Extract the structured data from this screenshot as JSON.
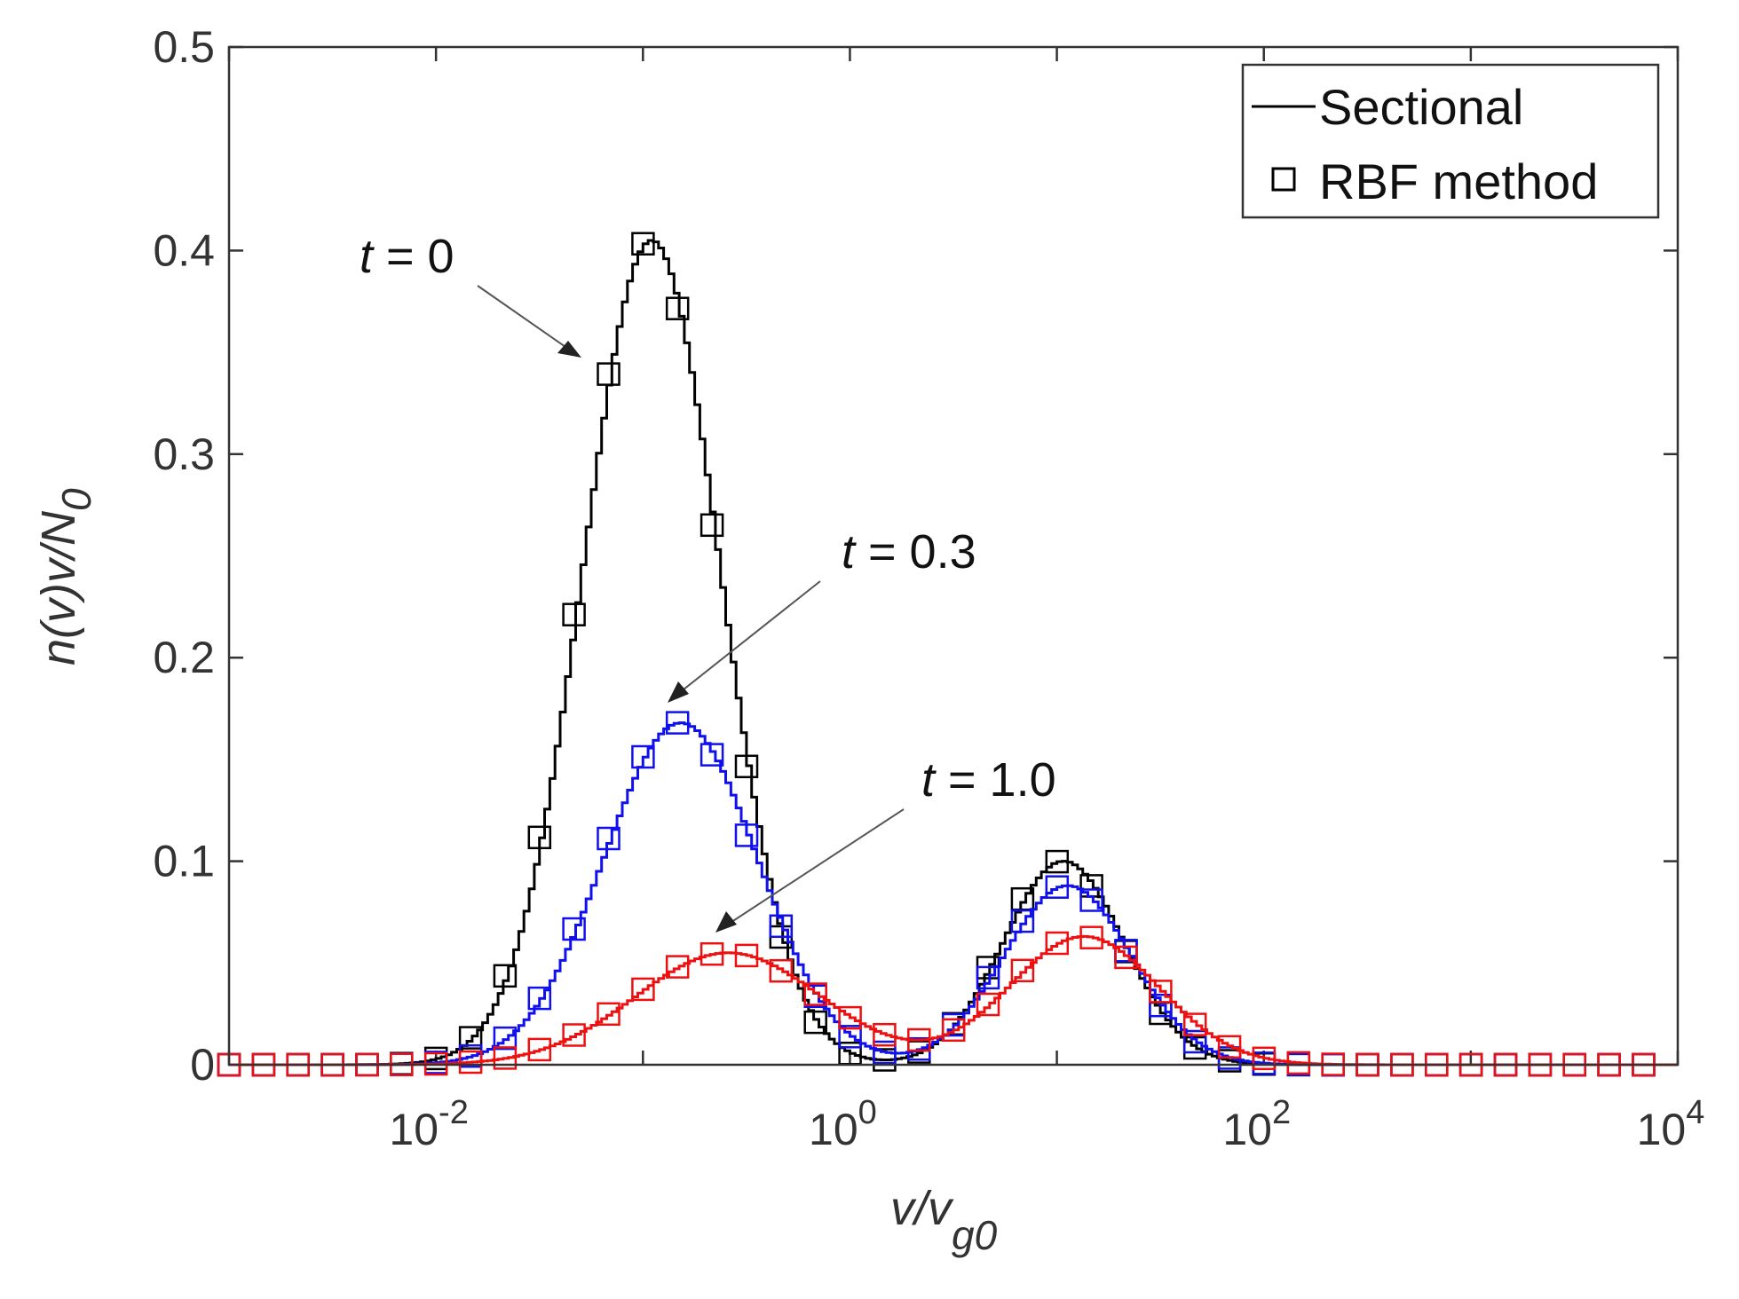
{
  "chart_data": {
    "type": "line",
    "xscale": "log",
    "xlim": [
      0.001,
      10000
    ],
    "ylim": [
      0,
      0.5
    ],
    "xticks": [
      0.01,
      1,
      100,
      10000
    ],
    "xtick_labels": [
      {
        "base": "10",
        "exp": "-2"
      },
      {
        "base": "10",
        "exp": "0"
      },
      {
        "base": "10",
        "exp": "2"
      },
      {
        "base": "10",
        "exp": "4"
      }
    ],
    "yticks": [
      0,
      0.1,
      0.2,
      0.3,
      0.4,
      0.5
    ],
    "ytick_labels": [
      "0",
      "0.1",
      "0.2",
      "0.3",
      "0.4",
      "0.5"
    ],
    "xlabel": {
      "main": "v/v",
      "sub": "g0"
    },
    "ylabel": {
      "main": "n(v)v/N",
      "sub": "0"
    },
    "legend": {
      "position": "top-right",
      "entries": [
        {
          "label": "Sectional",
          "marker": "line"
        },
        {
          "label": "RBF method",
          "marker": "square"
        }
      ]
    },
    "annotations": [
      {
        "t_label": "t",
        "value_label": " = 0",
        "series": "t=0"
      },
      {
        "t_label": "t",
        "value_label": " = 0.3",
        "series": "t=0.3"
      },
      {
        "t_label": "t",
        "value_label": " = 1.0",
        "series": "t=1.0"
      }
    ],
    "series": [
      {
        "name": "t=0",
        "color": "#000000",
        "modes": [
          {
            "amp": 0.405,
            "center_log10": -0.97,
            "width_log10": 0.33
          },
          {
            "amp": 0.1,
            "center_log10": 1.02,
            "width_log10": 0.29
          }
        ]
      },
      {
        "name": "t=0.3",
        "color": "#1010ee",
        "modes": [
          {
            "amp": 0.168,
            "center_log10": -0.83,
            "width_log10": 0.37
          },
          {
            "amp": 0.088,
            "center_log10": 1.04,
            "width_log10": 0.31
          }
        ]
      },
      {
        "name": "t=1.0",
        "color": "#ee1010",
        "modes": [
          {
            "amp": 0.055,
            "center_log10": -0.6,
            "width_log10": 0.45
          },
          {
            "amp": 0.063,
            "center_log10": 1.12,
            "width_log10": 0.36
          }
        ]
      }
    ],
    "marker_x_log10_start": -3.0,
    "marker_x_log10_step": 0.1667,
    "marker_count": 43
  }
}
